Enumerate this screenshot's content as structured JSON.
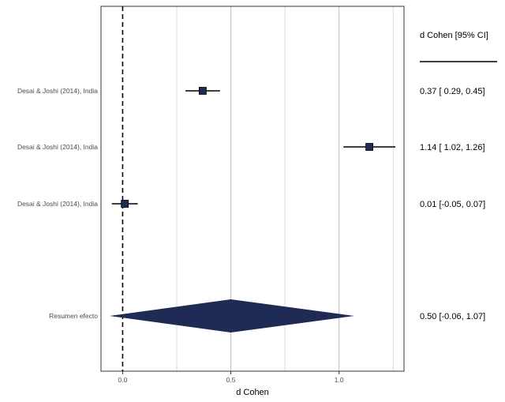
{
  "chart_data": {
    "type": "forest",
    "xlabel": "d Cohen",
    "xlim": [
      -0.1,
      1.3
    ],
    "x_ticks": [
      0.0,
      0.5,
      1.0
    ],
    "x_tick_labels": [
      "0.0",
      "0.5",
      "1.0"
    ],
    "vertical_gridlines": [
      0.25,
      0.5,
      0.75,
      1.0,
      1.25
    ],
    "reference_line": 0.0,
    "grid": true,
    "column_header": "d Cohen [95% CI]",
    "studies": [
      {
        "label": "Desai & Joshi (2014), India",
        "estimate": 0.37,
        "ci_low": 0.29,
        "ci_high": 0.45,
        "ci_text": "0.37 [ 0.29, 0.45]"
      },
      {
        "label": "Desai & Joshi (2014), India",
        "estimate": 1.14,
        "ci_low": 1.02,
        "ci_high": 1.26,
        "ci_text": "1.14 [ 1.02, 1.26]"
      },
      {
        "label": "Desai & Joshi (2014), India",
        "estimate": 0.01,
        "ci_low": -0.05,
        "ci_high": 0.07,
        "ci_text": "0.01 [-0.05, 0.07]"
      }
    ],
    "summary": {
      "label": "Resumen efecto",
      "estimate": 0.5,
      "ci_low": -0.06,
      "ci_high": 1.07,
      "ci_text": "0.50 [-0.06, 1.07]"
    },
    "colors": {
      "marker_fill": "#1f2a55",
      "diamond_fill": "#1f2a55",
      "ci_line": "#000000",
      "grid": "#cccccc",
      "panel_border": "#333333"
    }
  }
}
